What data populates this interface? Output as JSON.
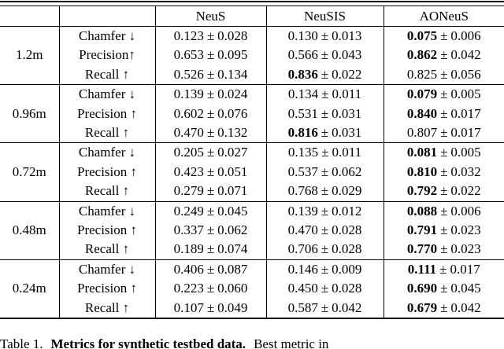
{
  "table": {
    "columns": [
      "NeuS",
      "NeuSIS",
      "AONeuS"
    ],
    "pm": "±",
    "groups": [
      {
        "scale": "1.2m",
        "rows": [
          {
            "metric": "Chamfer ↓",
            "values": [
              {
                "mean": "0.123",
                "std": "0.028",
                "bold": false
              },
              {
                "mean": "0.130",
                "std": "0.013",
                "bold": false
              },
              {
                "mean": "0.075",
                "std": "0.006",
                "bold": true
              }
            ]
          },
          {
            "metric": "Precision↑",
            "values": [
              {
                "mean": "0.653",
                "std": "0.095",
                "bold": false
              },
              {
                "mean": "0.566",
                "std": "0.043",
                "bold": false
              },
              {
                "mean": "0.862",
                "std": "0.042",
                "bold": true
              }
            ]
          },
          {
            "metric": "Recall ↑",
            "values": [
              {
                "mean": "0.526",
                "std": "0.134",
                "bold": false
              },
              {
                "mean": "0.836",
                "std": "0.022",
                "bold": true
              },
              {
                "mean": "0.825",
                "std": "0.056",
                "bold": false
              }
            ]
          }
        ]
      },
      {
        "scale": "0.96m",
        "rows": [
          {
            "metric": "Chamfer ↓",
            "values": [
              {
                "mean": "0.139",
                "std": "0.024",
                "bold": false
              },
              {
                "mean": "0.134",
                "std": "0.011",
                "bold": false
              },
              {
                "mean": "0.079",
                "std": "0.005",
                "bold": true
              }
            ]
          },
          {
            "metric": "Precision ↑",
            "values": [
              {
                "mean": "0.602",
                "std": "0.076",
                "bold": false
              },
              {
                "mean": "0.531",
                "std": "0.031",
                "bold": false
              },
              {
                "mean": "0.840",
                "std": "0.017",
                "bold": true
              }
            ]
          },
          {
            "metric": "Recall ↑",
            "values": [
              {
                "mean": "0.470",
                "std": "0.132",
                "bold": false
              },
              {
                "mean": "0.816",
                "std": "0.031",
                "bold": true
              },
              {
                "mean": "0.807",
                "std": "0.017",
                "bold": false
              }
            ]
          }
        ]
      },
      {
        "scale": "0.72m",
        "rows": [
          {
            "metric": "Chamfer ↓",
            "values": [
              {
                "mean": "0.205",
                "std": "0.027",
                "bold": false
              },
              {
                "mean": "0.135",
                "std": "0.011",
                "bold": false
              },
              {
                "mean": "0.081",
                "std": "0.005",
                "bold": true
              }
            ]
          },
          {
            "metric": "Precision ↑",
            "values": [
              {
                "mean": "0.423",
                "std": "0.051",
                "bold": false
              },
              {
                "mean": "0.537",
                "std": "0.062",
                "bold": false
              },
              {
                "mean": "0.810",
                "std": "0.032",
                "bold": true
              }
            ]
          },
          {
            "metric": "Recall ↑",
            "values": [
              {
                "mean": "0.279",
                "std": "0.071",
                "bold": false
              },
              {
                "mean": "0.768",
                "std": "0.029",
                "bold": false
              },
              {
                "mean": "0.792",
                "std": "0.022",
                "bold": true
              }
            ]
          }
        ]
      },
      {
        "scale": "0.48m",
        "rows": [
          {
            "metric": "Chamfer ↓",
            "values": [
              {
                "mean": "0.249",
                "std": "0.045",
                "bold": false
              },
              {
                "mean": "0.139",
                "std": "0.012",
                "bold": false
              },
              {
                "mean": "0.088",
                "std": "0.006",
                "bold": true
              }
            ]
          },
          {
            "metric": "Precision ↑",
            "values": [
              {
                "mean": "0.337",
                "std": "0.062",
                "bold": false
              },
              {
                "mean": "0.470",
                "std": "0.028",
                "bold": false
              },
              {
                "mean": "0.791",
                "std": "0.023",
                "bold": true
              }
            ]
          },
          {
            "metric": "Recall ↑",
            "values": [
              {
                "mean": "0.189",
                "std": "0.074",
                "bold": false
              },
              {
                "mean": "0.706",
                "std": "0.028",
                "bold": false
              },
              {
                "mean": "0.770",
                "std": "0.023",
                "bold": true
              }
            ]
          }
        ]
      },
      {
        "scale": "0.24m",
        "rows": [
          {
            "metric": "Chamfer ↓",
            "values": [
              {
                "mean": "0.406",
                "std": "0.087",
                "bold": false
              },
              {
                "mean": "0.146",
                "std": "0.009",
                "bold": false
              },
              {
                "mean": "0.111",
                "std": "0.017",
                "bold": true
              }
            ]
          },
          {
            "metric": "Precision ↑",
            "values": [
              {
                "mean": "0.223",
                "std": "0.060",
                "bold": false
              },
              {
                "mean": "0.450",
                "std": "0.028",
                "bold": false
              },
              {
                "mean": "0.690",
                "std": "0.045",
                "bold": true
              }
            ]
          },
          {
            "metric": "Recall ↑",
            "values": [
              {
                "mean": "0.107",
                "std": "0.049",
                "bold": false
              },
              {
                "mean": "0.587",
                "std": "0.042",
                "bold": false
              },
              {
                "mean": "0.679",
                "std": "0.042",
                "bold": true
              }
            ]
          }
        ]
      }
    ]
  },
  "caption": {
    "prefix": "Table 1.",
    "bold": "Metrics for synthetic testbed data.",
    "suffix": "Best metric in"
  }
}
